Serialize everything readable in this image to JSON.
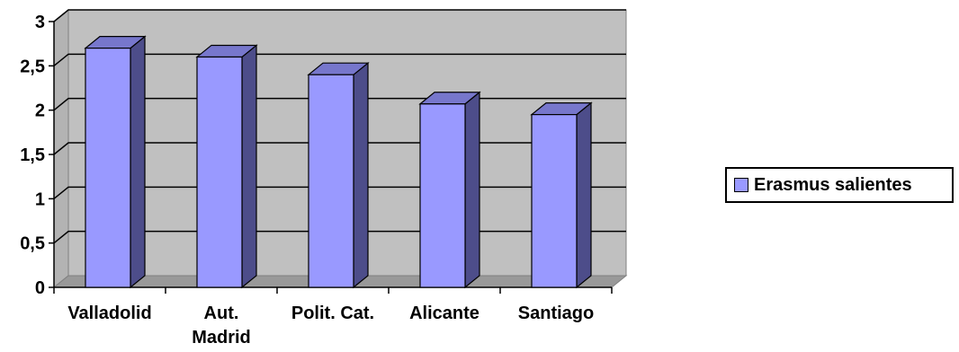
{
  "chart_data": {
    "type": "bar",
    "categories": [
      "Valladolid",
      "Aut. Madrid",
      "Polit. Cat.",
      "Alicante",
      "Santiago"
    ],
    "category_lines": [
      [
        "Valladolid"
      ],
      [
        "Aut.",
        "Madrid"
      ],
      [
        "Polit. Cat."
      ],
      [
        "Alicante"
      ],
      [
        "Santiago"
      ]
    ],
    "series": [
      {
        "name": "Erasmus salientes",
        "values": [
          2.7,
          2.6,
          2.4,
          2.07,
          1.95
        ]
      }
    ],
    "ylim": [
      0,
      3
    ],
    "yticks": [
      0,
      0.5,
      1,
      1.5,
      2,
      2.5,
      3
    ],
    "ytick_labels": [
      "0",
      "0,5",
      "1",
      "1,5",
      "2",
      "2,5",
      "3"
    ],
    "title": "",
    "xlabel": "",
    "ylabel": "",
    "grid": true,
    "three_d": true,
    "legend_position": "right",
    "colors": {
      "bar_front": "#9999ff",
      "bar_side": "#4d4d8a",
      "bar_top": "#7777cc",
      "plot_wall": "#c0c0c0",
      "floor": "#999999"
    }
  }
}
